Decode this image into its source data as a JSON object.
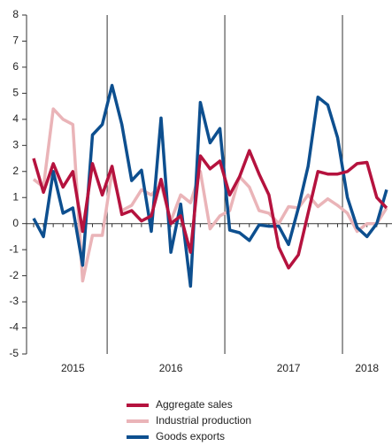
{
  "chart_data": {
    "type": "line",
    "categories": [
      null,
      null,
      null,
      null,
      "2015",
      null,
      null,
      null,
      null,
      null,
      null,
      null,
      null,
      null,
      "2016",
      null,
      null,
      null,
      null,
      null,
      null,
      null,
      null,
      null,
      null,
      null,
      "2017",
      null,
      null,
      null,
      null,
      null,
      null,
      null,
      "2018",
      null,
      null
    ],
    "series": [
      {
        "name": "Aggregate sales",
        "color": "#b5123e",
        "values": [
          2.5,
          1.2,
          2.3,
          1.4,
          2.0,
          -0.3,
          2.3,
          1.1,
          2.2,
          0.35,
          0.5,
          0.1,
          0.3,
          1.7,
          0.0,
          0.3,
          -1.1,
          2.6,
          2.1,
          2.4,
          1.1,
          1.8,
          2.8,
          1.9,
          1.1,
          -0.9,
          -1.7,
          -1.2,
          0.4,
          2.0,
          1.9,
          1.9,
          2.0,
          2.3,
          2.35,
          1.0,
          0.6
        ]
      },
      {
        "name": "Industrial production",
        "color": "#eab4b8",
        "values": [
          1.7,
          1.4,
          4.4,
          4.0,
          3.8,
          -2.2,
          -0.45,
          -0.45,
          2.0,
          0.5,
          0.7,
          1.3,
          1.1,
          1.5,
          0.1,
          1.1,
          0.8,
          2.0,
          -0.2,
          0.3,
          0.5,
          1.8,
          1.4,
          0.5,
          0.4,
          0.0,
          0.65,
          0.6,
          1.1,
          0.65,
          0.95,
          0.7,
          0.4,
          -0.3,
          0.0,
          0.0,
          0.6
        ]
      },
      {
        "name": "Goods exports",
        "color": "#0d4f8f",
        "values": [
          0.2,
          -0.5,
          2.0,
          0.4,
          0.6,
          -1.6,
          3.4,
          3.8,
          5.3,
          3.8,
          1.65,
          2.05,
          -0.3,
          4.05,
          -1.1,
          0.75,
          -2.4,
          4.65,
          3.1,
          3.65,
          -0.25,
          -0.35,
          -0.65,
          -0.05,
          -0.1,
          -0.1,
          -0.8,
          0.6,
          2.2,
          4.85,
          4.55,
          3.3,
          1.0,
          -0.15,
          -0.5,
          0.0,
          1.3
        ]
      }
    ],
    "ylim": [
      -5,
      8
    ],
    "yticks": [
      -5,
      -4,
      -3,
      -2,
      -1,
      0,
      1,
      2,
      3,
      4,
      5,
      6,
      7,
      8
    ]
  }
}
